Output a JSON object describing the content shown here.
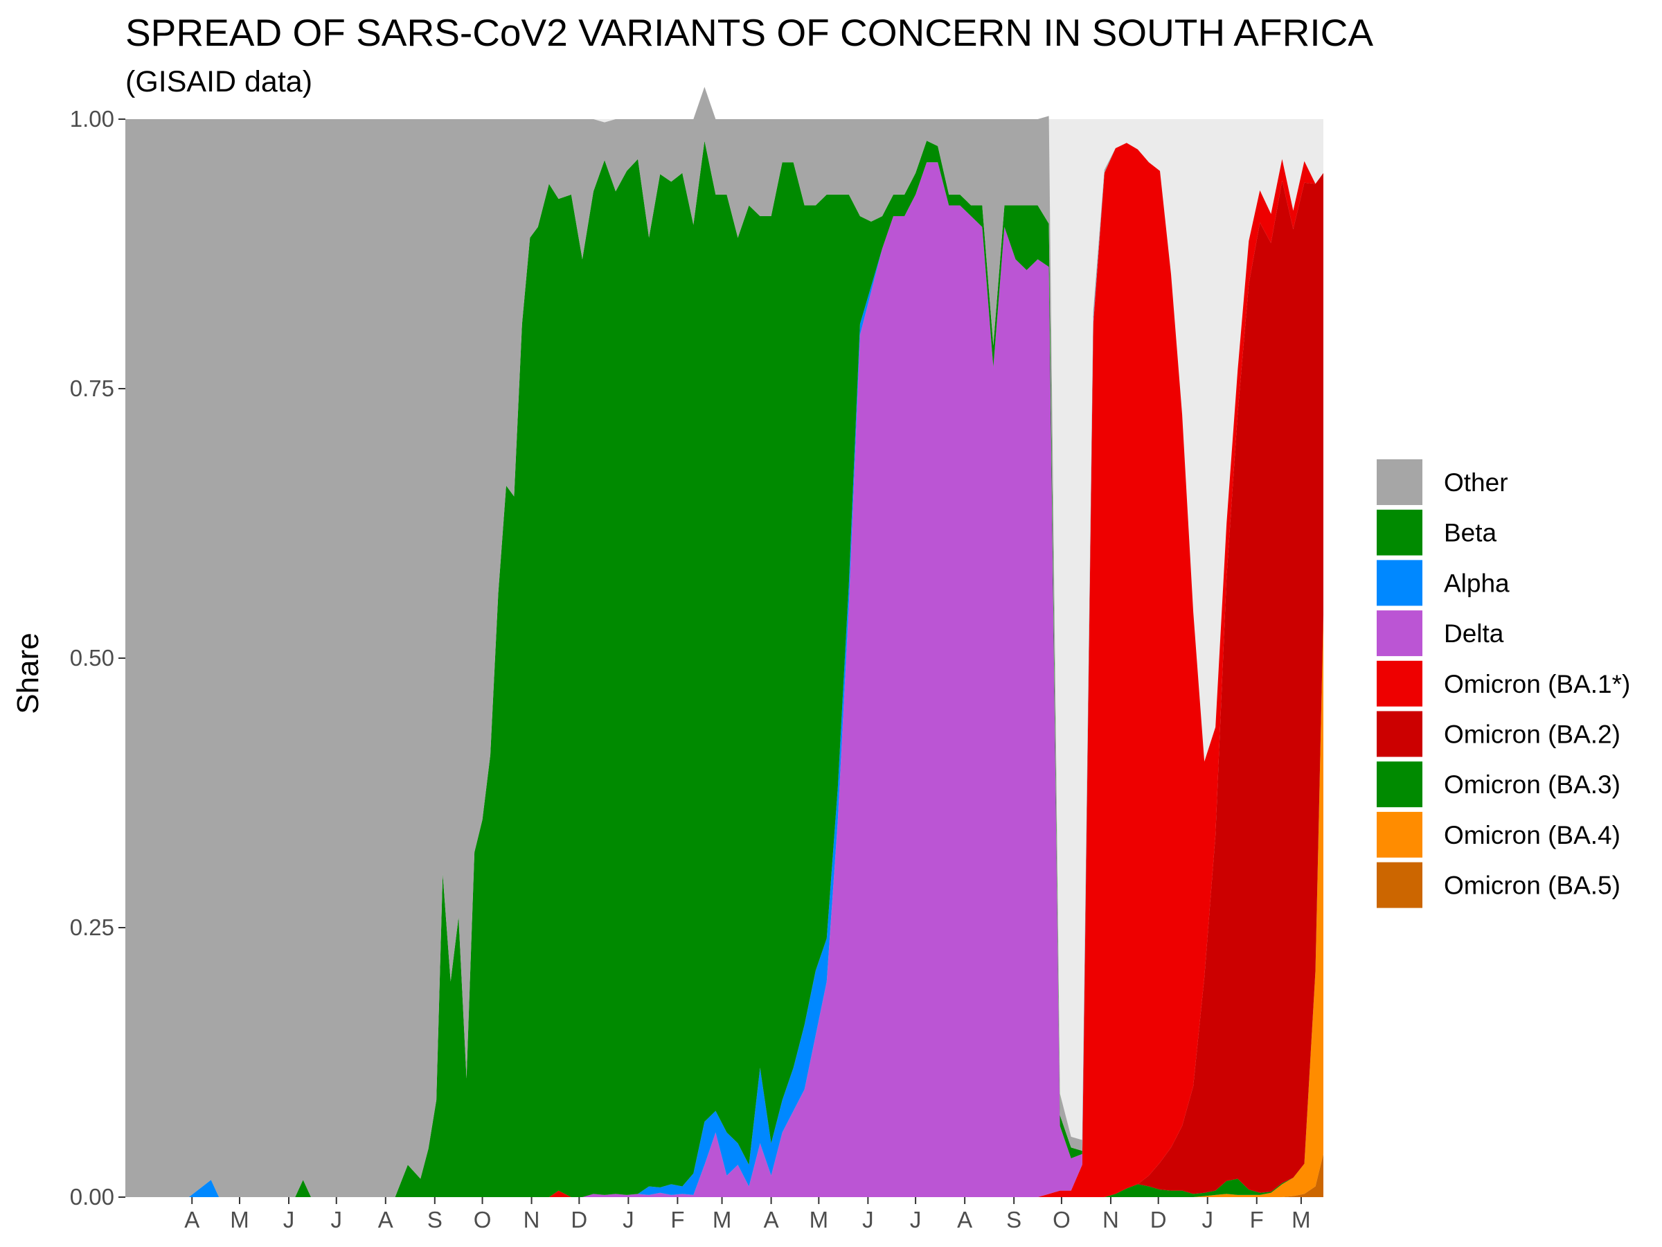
{
  "chart_data": {
    "type": "area",
    "stacked": true,
    "normalized": true,
    "title": "SPREAD OF SARS-CoV2 VARIANTS OF CONCERN IN SOUTH AFRICA",
    "subtitle": "(GISAID data)",
    "ylabel": "Share",
    "xlabel": "",
    "ylim": [
      0,
      1
    ],
    "y_ticks": [
      0,
      0.25,
      0.5,
      0.75,
      1
    ],
    "y_tick_labels": [
      "0.00",
      "0.25",
      "0.50",
      "0.75",
      "1.00"
    ],
    "x_unit": "week",
    "x_start": "2020-03-05",
    "x_end": "2022-03-30",
    "x_ticks": [
      {
        "date": "2020-04-01",
        "label": "A"
      },
      {
        "date": "2020-05-01",
        "label": "M"
      },
      {
        "date": "2020-06-01",
        "label": "J"
      },
      {
        "date": "2020-07-01",
        "label": "J"
      },
      {
        "date": "2020-08-01",
        "label": "A"
      },
      {
        "date": "2020-09-01",
        "label": "S"
      },
      {
        "date": "2020-10-01",
        "label": "O"
      },
      {
        "date": "2020-11-01",
        "label": "N"
      },
      {
        "date": "2020-12-01",
        "label": "D"
      },
      {
        "date": "2021-01-01",
        "label": "J"
      },
      {
        "date": "2021-02-01",
        "label": "F"
      },
      {
        "date": "2021-03-01",
        "label": "M"
      },
      {
        "date": "2021-04-01",
        "label": "A"
      },
      {
        "date": "2021-05-01",
        "label": "M"
      },
      {
        "date": "2021-06-01",
        "label": "J"
      },
      {
        "date": "2021-07-01",
        "label": "J"
      },
      {
        "date": "2021-08-01",
        "label": "A"
      },
      {
        "date": "2021-09-01",
        "label": "S"
      },
      {
        "date": "2021-10-01",
        "label": "O"
      },
      {
        "date": "2021-11-01",
        "label": "N"
      },
      {
        "date": "2021-12-01",
        "label": "D"
      },
      {
        "date": "2022-01-01",
        "label": "J"
      },
      {
        "date": "2022-02-01",
        "label": "F"
      },
      {
        "date": "2022-03-01",
        "label": "M"
      }
    ],
    "x": [
      "2020-03-05",
      "2020-04-14",
      "2020-04-28",
      "2020-05-03",
      "2020-05-08",
      "2020-06-20",
      "2020-06-25",
      "2020-06-30",
      "2020-08-15",
      "2020-08-22",
      "2020-08-30",
      "2020-09-07",
      "2020-09-12",
      "2020-09-17",
      "2020-09-21",
      "2020-09-26",
      "2020-10-01",
      "2020-10-06",
      "2020-10-11",
      "2020-10-16",
      "2020-10-21",
      "2020-10-26",
      "2020-10-31",
      "2020-11-05",
      "2020-11-10",
      "2020-11-15",
      "2020-11-20",
      "2020-11-27",
      "2020-12-03",
      "2020-12-11",
      "2020-12-18",
      "2020-12-25",
      "2021-01-01",
      "2021-01-08",
      "2021-01-15",
      "2021-01-22",
      "2021-01-29",
      "2021-02-05",
      "2021-02-12",
      "2021-02-19",
      "2021-02-26",
      "2021-03-05",
      "2021-03-12",
      "2021-03-19",
      "2021-03-26",
      "2021-04-02",
      "2021-04-09",
      "2021-04-16",
      "2021-04-23",
      "2021-04-30",
      "2021-05-07",
      "2021-05-14",
      "2021-05-21",
      "2021-05-28",
      "2021-06-04",
      "2021-06-11",
      "2021-06-18",
      "2021-06-25",
      "2021-07-02",
      "2021-07-09",
      "2021-07-16",
      "2021-07-23",
      "2021-07-30",
      "2021-08-06",
      "2021-08-13",
      "2021-08-20",
      "2021-08-27",
      "2021-09-03",
      "2021-09-10",
      "2021-09-17",
      "2021-09-24",
      "2021-10-01",
      "2021-10-08",
      "2021-10-15",
      "2021-10-22",
      "2021-10-29",
      "2021-11-05",
      "2021-11-12",
      "2021-11-19",
      "2021-11-26",
      "2021-12-03",
      "2021-12-10",
      "2021-12-17",
      "2021-12-24",
      "2021-12-31",
      "2022-01-07",
      "2022-01-14",
      "2022-01-21",
      "2022-01-28",
      "2022-02-04",
      "2022-02-11",
      "2022-02-18",
      "2022-02-25",
      "2022-03-04",
      "2022-03-11",
      "2022-03-18",
      "2022-03-25",
      "2022-03-30"
    ],
    "series": [
      {
        "name": "Omicron (BA.5)",
        "color": "#cc6600",
        "values": [
          0,
          0,
          0,
          0,
          0,
          0,
          0,
          0,
          0,
          0,
          0,
          0,
          0,
          0,
          0,
          0,
          0,
          0,
          0,
          0,
          0,
          0,
          0,
          0,
          0,
          0,
          0,
          0,
          0,
          0,
          0,
          0,
          0,
          0,
          0,
          0,
          0,
          0,
          0,
          0,
          0,
          0,
          0,
          0,
          0,
          0,
          0,
          0,
          0,
          0,
          0,
          0,
          0,
          0,
          0,
          0,
          0,
          0,
          0,
          0,
          0,
          0,
          0,
          0,
          0,
          0,
          0,
          0,
          0,
          0,
          0,
          0,
          0,
          0,
          0,
          0,
          0,
          0,
          0,
          0,
          0,
          0,
          0,
          0,
          0,
          0,
          0,
          0,
          0,
          0,
          0,
          0,
          0,
          0,
          0.001,
          0.003,
          0.01,
          0.04
        ]
      },
      {
        "name": "Omicron (BA.4)",
        "color": "#ff8c00",
        "values": [
          0,
          0,
          0,
          0,
          0,
          0,
          0,
          0,
          0,
          0,
          0,
          0,
          0,
          0,
          0,
          0,
          0,
          0,
          0,
          0,
          0,
          0,
          0,
          0,
          0,
          0,
          0,
          0,
          0,
          0,
          0,
          0,
          0,
          0,
          0,
          0,
          0,
          0,
          0,
          0,
          0,
          0,
          0,
          0,
          0,
          0,
          0,
          0,
          0,
          0,
          0,
          0,
          0,
          0,
          0,
          0,
          0,
          0,
          0,
          0,
          0,
          0,
          0,
          0,
          0,
          0,
          0,
          0,
          0,
          0,
          0,
          0,
          0,
          0,
          0,
          0,
          0,
          0,
          0,
          0,
          0,
          0,
          0,
          0,
          0,
          0,
          0.001,
          0.002,
          0.003,
          0.002,
          0.002,
          0.002,
          0.004,
          0.012,
          0.017,
          0.028,
          0.2,
          0.5
        ]
      },
      {
        "name": "Omicron (BA.3)",
        "color": "#008a00",
        "values": [
          0,
          0,
          0,
          0,
          0,
          0,
          0,
          0,
          0,
          0,
          0,
          0,
          0,
          0,
          0,
          0,
          0,
          0,
          0,
          0,
          0,
          0,
          0,
          0,
          0,
          0,
          0,
          0,
          0,
          0,
          0,
          0,
          0,
          0,
          0,
          0,
          0,
          0,
          0,
          0,
          0,
          0,
          0,
          0,
          0,
          0,
          0,
          0,
          0,
          0,
          0,
          0,
          0,
          0,
          0,
          0,
          0,
          0,
          0,
          0,
          0,
          0,
          0,
          0,
          0,
          0,
          0,
          0,
          0,
          0,
          0,
          0,
          0,
          0,
          0,
          0,
          0,
          0,
          0.003,
          0.008,
          0.012,
          0.01,
          0.007,
          0.006,
          0.006,
          0.003,
          0.003,
          0.004,
          0.012,
          0.015,
          0.005,
          0.002,
          0.001,
          0.001,
          0,
          0,
          0,
          0
        ]
      },
      {
        "name": "Omicron (BA.2)",
        "color": "#cc0000",
        "values": [
          0,
          0,
          0,
          0,
          0,
          0,
          0,
          0,
          0,
          0,
          0,
          0,
          0,
          0,
          0,
          0,
          0,
          0,
          0,
          0,
          0,
          0,
          0,
          0,
          0,
          0,
          0,
          0,
          0,
          0,
          0,
          0,
          0,
          0,
          0,
          0,
          0,
          0,
          0,
          0,
          0,
          0,
          0,
          0,
          0,
          0,
          0,
          0,
          0,
          0,
          0,
          0,
          0,
          0,
          0,
          0,
          0,
          0,
          0,
          0,
          0,
          0,
          0,
          0,
          0,
          0,
          0,
          0,
          0,
          0,
          0,
          0,
          0,
          0,
          0,
          0,
          0,
          0,
          0,
          0,
          0,
          0.01,
          0.025,
          0.04,
          0.06,
          0.1,
          0.2,
          0.33,
          0.56,
          0.71,
          0.84,
          0.9,
          0.88,
          0.93,
          0.88,
          0.91,
          0.73,
          0.41
        ]
      },
      {
        "name": "Omicron (BA.1*)",
        "color": "#ee0000",
        "values": [
          0,
          0,
          0,
          0,
          0,
          0,
          0,
          0,
          0,
          0,
          0,
          0,
          0,
          0,
          0,
          0,
          0,
          0,
          0,
          0,
          0,
          0,
          0,
          0,
          0,
          0,
          0,
          0,
          0.006,
          0,
          0,
          0,
          0,
          0,
          0,
          0,
          0,
          0,
          0,
          0,
          0,
          0,
          0,
          0,
          0,
          0,
          0,
          0,
          0,
          0,
          0,
          0,
          0,
          0,
          0,
          0,
          0,
          0,
          0,
          0,
          0,
          0,
          0,
          0,
          0,
          0,
          0,
          0,
          0,
          0,
          0,
          0,
          0.003,
          0.006,
          0.006,
          0.03,
          0.81,
          0.95,
          0.97,
          0.97,
          0.96,
          0.94,
          0.92,
          0.81,
          0.66,
          0.44,
          0.2,
          0.1,
          0.05,
          0.04,
          0.04,
          0.03,
          0.027,
          0.02,
          0.017,
          0.02,
          0,
          0
        ]
      },
      {
        "name": "Delta",
        "color": "#bb55d4",
        "values": [
          0,
          0,
          0,
          0,
          0,
          0,
          0,
          0,
          0,
          0,
          0,
          0,
          0,
          0,
          0,
          0,
          0,
          0,
          0,
          0,
          0,
          0,
          0,
          0,
          0,
          0,
          0,
          0,
          0,
          0,
          0,
          0.003,
          0.002,
          0.003,
          0.002,
          0.003,
          0.002,
          0.004,
          0.002,
          0.003,
          0.002,
          0.03,
          0.06,
          0.02,
          0.03,
          0.01,
          0.05,
          0.02,
          0.06,
          0.08,
          0.1,
          0.15,
          0.2,
          0.35,
          0.55,
          0.8,
          0.84,
          0.88,
          0.91,
          0.91,
          0.93,
          0.96,
          0.96,
          0.92,
          0.92,
          0.91,
          0.9,
          0.77,
          0.9,
          0.87,
          0.86,
          0.87,
          0.86,
          0.06,
          0.03,
          0.01,
          0.005,
          0,
          0,
          0,
          0,
          0,
          0,
          0,
          0,
          0,
          0,
          0,
          0,
          0,
          0,
          0,
          0,
          0,
          0,
          0,
          0,
          0
        ]
      },
      {
        "name": "Alpha",
        "color": "#0088ff",
        "values": [
          0,
          0,
          0.016,
          0,
          0,
          0,
          0,
          0,
          0,
          0,
          0,
          0,
          0,
          0,
          0,
          0,
          0,
          0,
          0,
          0,
          0,
          0,
          0,
          0,
          0,
          0,
          0,
          0,
          0,
          0,
          0,
          0,
          0,
          0,
          0,
          0,
          0.008,
          0.005,
          0.01,
          0.007,
          0.02,
          0.04,
          0.02,
          0.04,
          0.02,
          0.02,
          0.07,
          0.03,
          0.03,
          0.04,
          0.06,
          0.06,
          0.04,
          0.03,
          0.02,
          0.01,
          0.005,
          0,
          0,
          0,
          0,
          0,
          0,
          0,
          0,
          0,
          0,
          0,
          0,
          0,
          0,
          0,
          0,
          0,
          0,
          0,
          0,
          0,
          0,
          0,
          0,
          0,
          0,
          0,
          0,
          0,
          0,
          0,
          0,
          0,
          0,
          0,
          0,
          0,
          0,
          0,
          0,
          0
        ]
      },
      {
        "name": "Beta",
        "color": "#008a00",
        "values": [
          0,
          0,
          0,
          0,
          0,
          0,
          0.016,
          0,
          0,
          0,
          0.03,
          0.017,
          0.045,
          0.09,
          0.3,
          0.2,
          0.26,
          0.11,
          0.32,
          0.35,
          0.41,
          0.56,
          0.66,
          0.65,
          0.81,
          0.89,
          0.9,
          0.94,
          0.92,
          0.93,
          0.87,
          0.93,
          0.96,
          0.93,
          0.95,
          0.96,
          0.88,
          0.94,
          0.93,
          0.94,
          0.88,
          0.91,
          0.85,
          0.87,
          0.84,
          0.89,
          0.79,
          0.86,
          0.87,
          0.84,
          0.76,
          0.71,
          0.69,
          0.55,
          0.36,
          0.1,
          0.06,
          0.03,
          0.02,
          0.02,
          0.02,
          0.02,
          0.015,
          0.01,
          0.01,
          0.01,
          0.02,
          0.02,
          0.02,
          0.05,
          0.06,
          0.05,
          0.04,
          0.01,
          0.01,
          0.003,
          0.002,
          0,
          0,
          0,
          0,
          0,
          0,
          0,
          0,
          0,
          0,
          0,
          0,
          0,
          0,
          0,
          0,
          0,
          0,
          0,
          0,
          0
        ]
      },
      {
        "name": "Other",
        "color": "#a6a6a6",
        "values": [
          1,
          1,
          0.984,
          1,
          1,
          1,
          0.984,
          1,
          1,
          1,
          0.97,
          0.983,
          0.955,
          0.91,
          0.7,
          0.8,
          0.74,
          0.89,
          0.68,
          0.65,
          0.59,
          0.44,
          0.34,
          0.35,
          0.19,
          0.11,
          0.1,
          0.06,
          0.074,
          0.07,
          0.13,
          0.067,
          0.035,
          0.067,
          0.048,
          0.037,
          0.11,
          0.051,
          0.058,
          0.05,
          0.098,
          0.05,
          0.07,
          0.07,
          0.11,
          0.08,
          0.09,
          0.09,
          0.04,
          0.04,
          0.08,
          0.08,
          0.07,
          0.07,
          0.07,
          0.09,
          0.095,
          0.09,
          0.07,
          0.07,
          0.05,
          0.02,
          0.025,
          0.07,
          0.07,
          0.08,
          0.08,
          0.21,
          0.08,
          0.08,
          0.08,
          0.08,
          0.1,
          0.02,
          0.01,
          0.01,
          0.005,
          0.003,
          0,
          0,
          0,
          0,
          0,
          0,
          0,
          0,
          0,
          0,
          0,
          0,
          0,
          0,
          0,
          0,
          0,
          0,
          0,
          0
        ]
      }
    ],
    "legend": {
      "position": "right",
      "entries": [
        {
          "label": "Other",
          "color": "#a6a6a6"
        },
        {
          "label": "Beta",
          "color": "#008a00"
        },
        {
          "label": "Alpha",
          "color": "#0088ff"
        },
        {
          "label": "Delta",
          "color": "#bb55d4"
        },
        {
          "label": "Omicron (BA.1*)",
          "color": "#ee0000"
        },
        {
          "label": "Omicron (BA.2)",
          "color": "#cc0000"
        },
        {
          "label": "Omicron (BA.3)",
          "color": "#008a00"
        },
        {
          "label": "Omicron (BA.4)",
          "color": "#ff8c00"
        },
        {
          "label": "Omicron (BA.5)",
          "color": "#cc6600"
        }
      ]
    },
    "grid": false,
    "panel_background": "#ebebeb"
  }
}
